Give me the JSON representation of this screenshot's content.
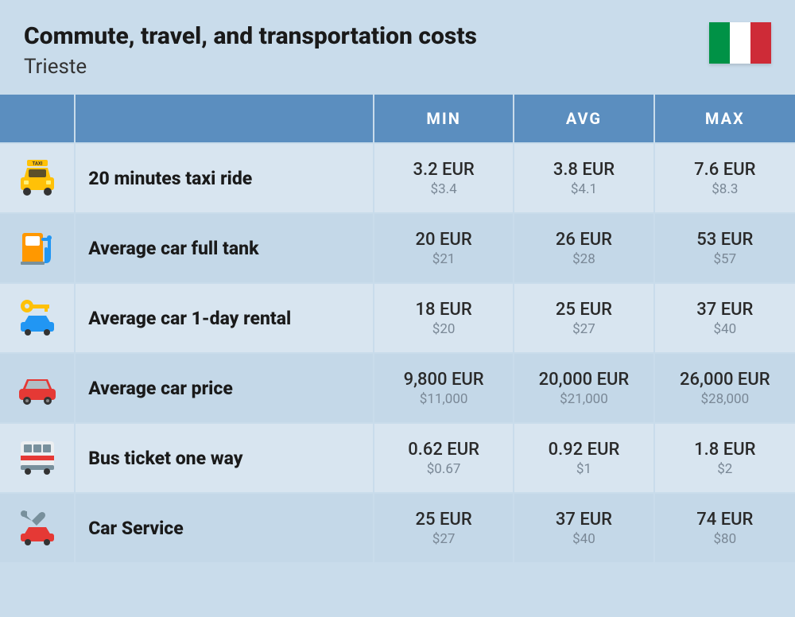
{
  "header": {
    "title": "Commute, travel, and transportation costs",
    "subtitle": "Trieste"
  },
  "flag": {
    "stripe1": "#009246",
    "stripe2": "#ffffff",
    "stripe3": "#ce2b37"
  },
  "columns": {
    "min": "MIN",
    "avg": "AVG",
    "max": "MAX"
  },
  "rows": [
    {
      "icon": "taxi",
      "label": "20 minutes taxi ride",
      "min_eur": "3.2 EUR",
      "min_usd": "$3.4",
      "avg_eur": "3.8 EUR",
      "avg_usd": "$4.1",
      "max_eur": "7.6 EUR",
      "max_usd": "$8.3"
    },
    {
      "icon": "fuel",
      "label": "Average car full tank",
      "min_eur": "20 EUR",
      "min_usd": "$21",
      "avg_eur": "26 EUR",
      "avg_usd": "$28",
      "max_eur": "53 EUR",
      "max_usd": "$57"
    },
    {
      "icon": "rental",
      "label": "Average car 1-day rental",
      "min_eur": "18 EUR",
      "min_usd": "$20",
      "avg_eur": "25 EUR",
      "avg_usd": "$27",
      "max_eur": "37 EUR",
      "max_usd": "$40"
    },
    {
      "icon": "car",
      "label": "Average car price",
      "min_eur": "9,800 EUR",
      "min_usd": "$11,000",
      "avg_eur": "20,000 EUR",
      "avg_usd": "$21,000",
      "max_eur": "26,000 EUR",
      "max_usd": "$28,000"
    },
    {
      "icon": "bus",
      "label": "Bus ticket one way",
      "min_eur": "0.62 EUR",
      "min_usd": "$0.67",
      "avg_eur": "0.92 EUR",
      "avg_usd": "$1",
      "max_eur": "1.8 EUR",
      "max_usd": "$2"
    },
    {
      "icon": "service",
      "label": "Car Service",
      "min_eur": "25 EUR",
      "min_usd": "$27",
      "avg_eur": "37 EUR",
      "avg_usd": "$40",
      "max_eur": "74 EUR",
      "max_usd": "$80"
    }
  ],
  "styling": {
    "page_bg": "#c9dceb",
    "header_bg": "#5b8ebf",
    "header_text": "#ffffff",
    "row_odd_bg": "#d8e5f0",
    "row_even_bg": "#c4d8e8",
    "title_color": "#1a1a1a",
    "eur_color": "#2a2a2a",
    "usd_color": "#7a8896",
    "title_fontsize": 30,
    "subtitle_fontsize": 26,
    "col_header_fontsize": 20,
    "label_fontsize": 23,
    "eur_fontsize": 22,
    "usd_fontsize": 17,
    "icon_colors": {
      "taxi_body": "#ffc107",
      "taxi_dark": "#333",
      "fuel_body": "#ff9800",
      "fuel_accent": "#2196f3",
      "rental_key": "#ffc107",
      "rental_car": "#2196f3",
      "car_body": "#e53935",
      "car_dark": "#b71c1c",
      "bus_body": "#eceff1",
      "bus_stripe": "#e53935",
      "bus_dark": "#78909c",
      "service_wrench": "#78909c",
      "service_car": "#e53935"
    }
  }
}
